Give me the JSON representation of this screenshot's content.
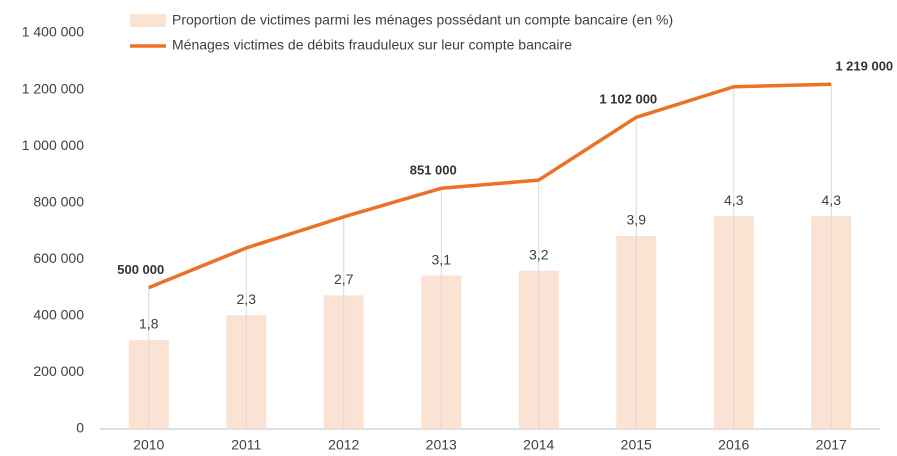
{
  "chart_data": {
    "type": "bar_line",
    "categories": [
      "2010",
      "2011",
      "2012",
      "2013",
      "2014",
      "2015",
      "2016",
      "2017"
    ],
    "series": [
      {
        "name": "Proportion de victimes parmi les ménages possédant un compte bancaire (en %)",
        "type": "bar",
        "axis": "y2",
        "color": "#fbe3d3",
        "values": [
          1.8,
          2.3,
          2.7,
          3.1,
          3.2,
          3.9,
          4.3,
          4.3
        ],
        "value_labels": [
          "1,8",
          "2,3",
          "2,7",
          "3,1",
          "3,2",
          "3,9",
          "4,3",
          "4,3"
        ]
      },
      {
        "name": "Ménages victimes de débits frauduleux sur leur compte bancaire",
        "type": "line",
        "color": "#ea7125",
        "values": [
          500000,
          640000,
          750000,
          851000,
          880000,
          1102000,
          1210000,
          1219000
        ],
        "value_labels": [
          "500 000",
          null,
          null,
          "851 000",
          null,
          "1 102 000",
          null,
          "1 219 000"
        ]
      }
    ],
    "ylim": [
      0,
      1400000
    ],
    "yticks": [
      0,
      {
        "value": 200000,
        "label": "200 000"
      },
      {
        "value": 400000,
        "label": "400 000"
      },
      {
        "value": 600000,
        "label": "600 000"
      },
      {
        "value": 800000,
        "label": "800 000"
      },
      {
        "value": 1000000,
        "label": "1 000 000"
      },
      {
        "value": 1200000,
        "label": "1 200 000"
      },
      {
        "value": 1400000,
        "label": "1 400 000"
      }
    ],
    "y2lim": [
      0,
      8
    ]
  }
}
